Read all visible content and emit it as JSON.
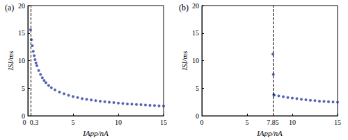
{
  "chart_data": [
    {
      "type": "scatter",
      "title": "(a)",
      "xlabel": "IApp/nA",
      "ylabel": "ISI/ms",
      "x": [
        0.3,
        0.4,
        0.5,
        0.6,
        0.7,
        0.8,
        0.9,
        1.0,
        1.2,
        1.4,
        1.6,
        1.8,
        2.0,
        2.3,
        2.6,
        3.0,
        3.5,
        4.0,
        4.5,
        5.0,
        5.5,
        6.0,
        6.5,
        7.0,
        7.5,
        8.0,
        8.5,
        9.0,
        9.5,
        10.0,
        10.5,
        11.0,
        11.5,
        12.0,
        12.5,
        13.0,
        13.5,
        14.0,
        14.5,
        15.0
      ],
      "values": [
        15.6,
        13.8,
        12.7,
        11.7,
        10.9,
        10.2,
        9.6,
        9.1,
        8.2,
        7.5,
        6.9,
        6.4,
        6.0,
        5.5,
        5.1,
        4.7,
        4.3,
        4.0,
        3.7,
        3.5,
        3.3,
        3.1,
        3.0,
        2.85,
        2.75,
        2.65,
        2.55,
        2.45,
        2.38,
        2.3,
        2.22,
        2.15,
        2.1,
        2.05,
        2.0,
        1.95,
        1.9,
        1.85,
        1.8,
        1.76
      ],
      "color": "#2b3f9c",
      "marker": "circle",
      "xlim": [
        0,
        15
      ],
      "xticks": [
        0,
        0.3,
        5,
        10,
        15
      ],
      "ylim": [
        0,
        20
      ],
      "yticks": [
        0,
        5,
        10,
        15,
        20
      ],
      "threshold": 0.3,
      "grid": false
    },
    {
      "type": "scatter",
      "title": "(b)",
      "xlabel": "IApp/nA",
      "ylabel": "ISI/ms",
      "x": [
        7.85,
        7.9,
        7.95,
        8.0,
        8.5,
        9.0,
        9.5,
        10.0,
        10.5,
        11.0,
        11.5,
        12.0,
        12.5,
        13.0,
        13.5,
        14.0,
        14.5,
        15.0
      ],
      "values": [
        11.2,
        7.5,
        3.8,
        3.75,
        3.6,
        3.45,
        3.3,
        3.2,
        3.1,
        3.0,
        2.9,
        2.8,
        2.75,
        2.65,
        2.6,
        2.55,
        2.5,
        2.45
      ],
      "color": "#2b3f9c",
      "marker": "circle",
      "xlim": [
        0,
        15
      ],
      "xticks": [
        0,
        5,
        7.85,
        10,
        15
      ],
      "ylim": [
        0,
        20
      ],
      "yticks": [
        0,
        5,
        10,
        15,
        20
      ],
      "threshold": 7.85,
      "grid": false
    }
  ]
}
